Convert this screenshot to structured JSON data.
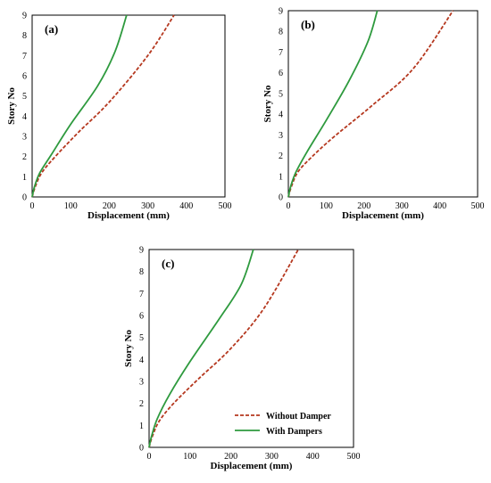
{
  "chart_data": [
    {
      "type": "line",
      "panel_label": "(a)",
      "xlabel": "Displacement (mm)",
      "ylabel": "Story No",
      "xlim": [
        0,
        500
      ],
      "ylim": [
        0,
        9
      ],
      "xticks": [
        "0",
        "100",
        "200",
        "300",
        "400",
        "500"
      ],
      "yticks": [
        "0",
        "1",
        "2",
        "3",
        "4",
        "5",
        "6",
        "7",
        "8",
        "9"
      ],
      "grid": false,
      "series": [
        {
          "name": "Without Damper",
          "color": "#b5381f",
          "dash": "dashed",
          "x": [
            0,
            8,
            25,
            60,
            120,
            200,
            300,
            368
          ],
          "y": [
            0,
            0.5,
            1.2,
            2.0,
            3.2,
            4.7,
            7.0,
            9
          ]
        },
        {
          "name": "With Dampers",
          "color": "#2e9a3e",
          "dash": "solid",
          "x": [
            0,
            6,
            20,
            50,
            100,
            170,
            215,
            245
          ],
          "y": [
            0,
            0.5,
            1.2,
            2.1,
            3.6,
            5.5,
            7.2,
            9
          ]
        }
      ]
    },
    {
      "type": "line",
      "panel_label": "(b)",
      "xlabel": "Displacement (mm)",
      "ylabel": "Story No",
      "xlim": [
        0,
        500
      ],
      "ylim": [
        0,
        9
      ],
      "xticks": [
        "0",
        "100",
        "200",
        "300",
        "400",
        "500"
      ],
      "yticks": [
        "0",
        "1",
        "2",
        "3",
        "4",
        "5",
        "6",
        "7",
        "8",
        "9"
      ],
      "grid": false,
      "series": [
        {
          "name": "Without Damper",
          "color": "#b5381f",
          "dash": "dashed",
          "x": [
            0,
            8,
            25,
            60,
            120,
            220,
            330,
            435
          ],
          "y": [
            0,
            0.5,
            1.2,
            1.9,
            2.9,
            4.4,
            6.2,
            9
          ]
        },
        {
          "name": "With Dampers",
          "color": "#2e9a3e",
          "dash": "solid",
          "x": [
            0,
            6,
            20,
            50,
            100,
            160,
            210,
            235
          ],
          "y": [
            0,
            0.5,
            1.2,
            2.2,
            3.7,
            5.6,
            7.5,
            9
          ]
        }
      ]
    },
    {
      "type": "line",
      "panel_label": "(c)",
      "xlabel": "Displacement (mm)",
      "ylabel": "Story No",
      "xlim": [
        0,
        500
      ],
      "ylim": [
        0,
        9
      ],
      "xticks": [
        "0",
        "100",
        "200",
        "300",
        "400",
        "500"
      ],
      "yticks": [
        "0",
        "1",
        "2",
        "3",
        "4",
        "5",
        "6",
        "7",
        "8",
        "9"
      ],
      "grid": false,
      "legend": "bottom-right",
      "series": [
        {
          "name": "Without Damper",
          "color": "#b5381f",
          "dash": "dashed",
          "x": [
            0,
            8,
            25,
            60,
            120,
            200,
            280,
            365
          ],
          "y": [
            0,
            0.5,
            1.2,
            2.0,
            3.1,
            4.5,
            6.3,
            9
          ]
        },
        {
          "name": "With Dampers",
          "color": "#2e9a3e",
          "dash": "solid",
          "x": [
            0,
            6,
            20,
            50,
            100,
            170,
            225,
            255
          ],
          "y": [
            0,
            0.5,
            1.3,
            2.4,
            3.9,
            5.8,
            7.4,
            9
          ]
        }
      ]
    }
  ]
}
